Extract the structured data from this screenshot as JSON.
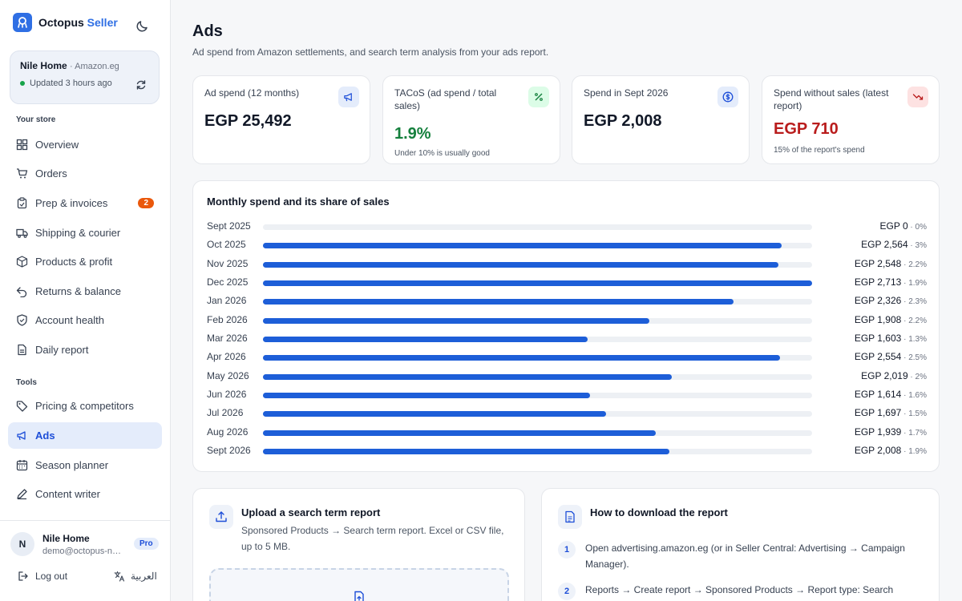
{
  "brand": {
    "name": "Octopus",
    "accent": "Seller"
  },
  "store": {
    "name": "Nile Home",
    "marketplace": "Amazon.eg",
    "updated": "Updated 3 hours ago"
  },
  "sidebar": {
    "section_store": "Your store",
    "section_tools": "Tools",
    "items": [
      {
        "label": "Overview",
        "icon": "grid-icon"
      },
      {
        "label": "Orders",
        "icon": "cart-icon"
      },
      {
        "label": "Prep & invoices",
        "icon": "clipboard-icon",
        "badge": "2"
      },
      {
        "label": "Shipping & courier",
        "icon": "truck-icon"
      },
      {
        "label": "Products & profit",
        "icon": "box-icon"
      },
      {
        "label": "Returns & balance",
        "icon": "undo-icon"
      },
      {
        "label": "Account health",
        "icon": "shield-icon"
      },
      {
        "label": "Daily report",
        "icon": "file-icon"
      },
      {
        "label": "Pricing & competitors",
        "icon": "tag-icon"
      },
      {
        "label": "Ads",
        "icon": "megaphone-icon",
        "active": true
      },
      {
        "label": "Season planner",
        "icon": "calendar-icon"
      },
      {
        "label": "Content writer",
        "icon": "pen-icon"
      }
    ]
  },
  "user": {
    "initial": "N",
    "name": "Nile Home",
    "email": "demo@octopus-net...",
    "plan": "Pro",
    "logout": "Log out",
    "language": "العربية"
  },
  "page": {
    "title": "Ads",
    "subtitle": "Ad spend from Amazon settlements, and search term analysis from your ads report."
  },
  "kpis": [
    {
      "label": "Ad spend (12 months)",
      "value": "EGP 25,492",
      "note": "",
      "icon": "megaphone-icon"
    },
    {
      "label": "TACoS (ad spend / total sales)",
      "value": "1.9%",
      "note": "Under 10% is usually good",
      "icon": "percent-icon"
    },
    {
      "label": "Spend in Sept 2026",
      "value": "EGP 2,008",
      "note": "",
      "icon": "dollar-icon"
    },
    {
      "label": "Spend without sales (latest report)",
      "value": "EGP 710",
      "note": "15% of the report's spend",
      "icon": "trend-down-icon"
    }
  ],
  "colors": {
    "primary": "#1d5ed8",
    "good": "#15803d",
    "bad": "#b91c1c",
    "badge": "#ea580c"
  },
  "chart_data": {
    "type": "bar",
    "title": "Monthly spend and its share of sales",
    "orientation": "horizontal",
    "categories": [
      "Sept 2025",
      "Oct 2025",
      "Nov 2025",
      "Dec 2025",
      "Jan 2026",
      "Feb 2026",
      "Mar 2026",
      "Apr 2026",
      "May 2026",
      "Jun 2026",
      "Jul 2026",
      "Aug 2026",
      "Sept 2026"
    ],
    "values": [
      0,
      2564,
      2548,
      2713,
      2326,
      1908,
      1603,
      2554,
      2019,
      1614,
      1697,
      1939,
      2008
    ],
    "value_labels": [
      "EGP 0",
      "EGP 2,564",
      "EGP 2,548",
      "EGP 2,713",
      "EGP 2,326",
      "EGP 1,908",
      "EGP 1,603",
      "EGP 2,554",
      "EGP 2,019",
      "EGP 1,614",
      "EGP 1,697",
      "EGP 1,939",
      "EGP 2,008"
    ],
    "share_labels": [
      "0%",
      "3%",
      "2.2%",
      "1.9%",
      "2.3%",
      "2.2%",
      "1.3%",
      "2.5%",
      "2%",
      "1.6%",
      "1.5%",
      "1.7%",
      "1.9%"
    ],
    "xlim": [
      0,
      2713
    ]
  },
  "upload": {
    "title": "Upload a search term report",
    "text": "Sponsored Products → Search term report. Excel or CSV file, up to 5 MB."
  },
  "howto": {
    "title": "How to download the report",
    "steps": [
      {
        "num": "1",
        "text": "Open advertising.amazon.eg (or in Seller Central: Advertising → Campaign Manager)."
      },
      {
        "num": "2",
        "text": "Reports → Create report → Sponsored Products → Report type: Search term."
      }
    ]
  }
}
